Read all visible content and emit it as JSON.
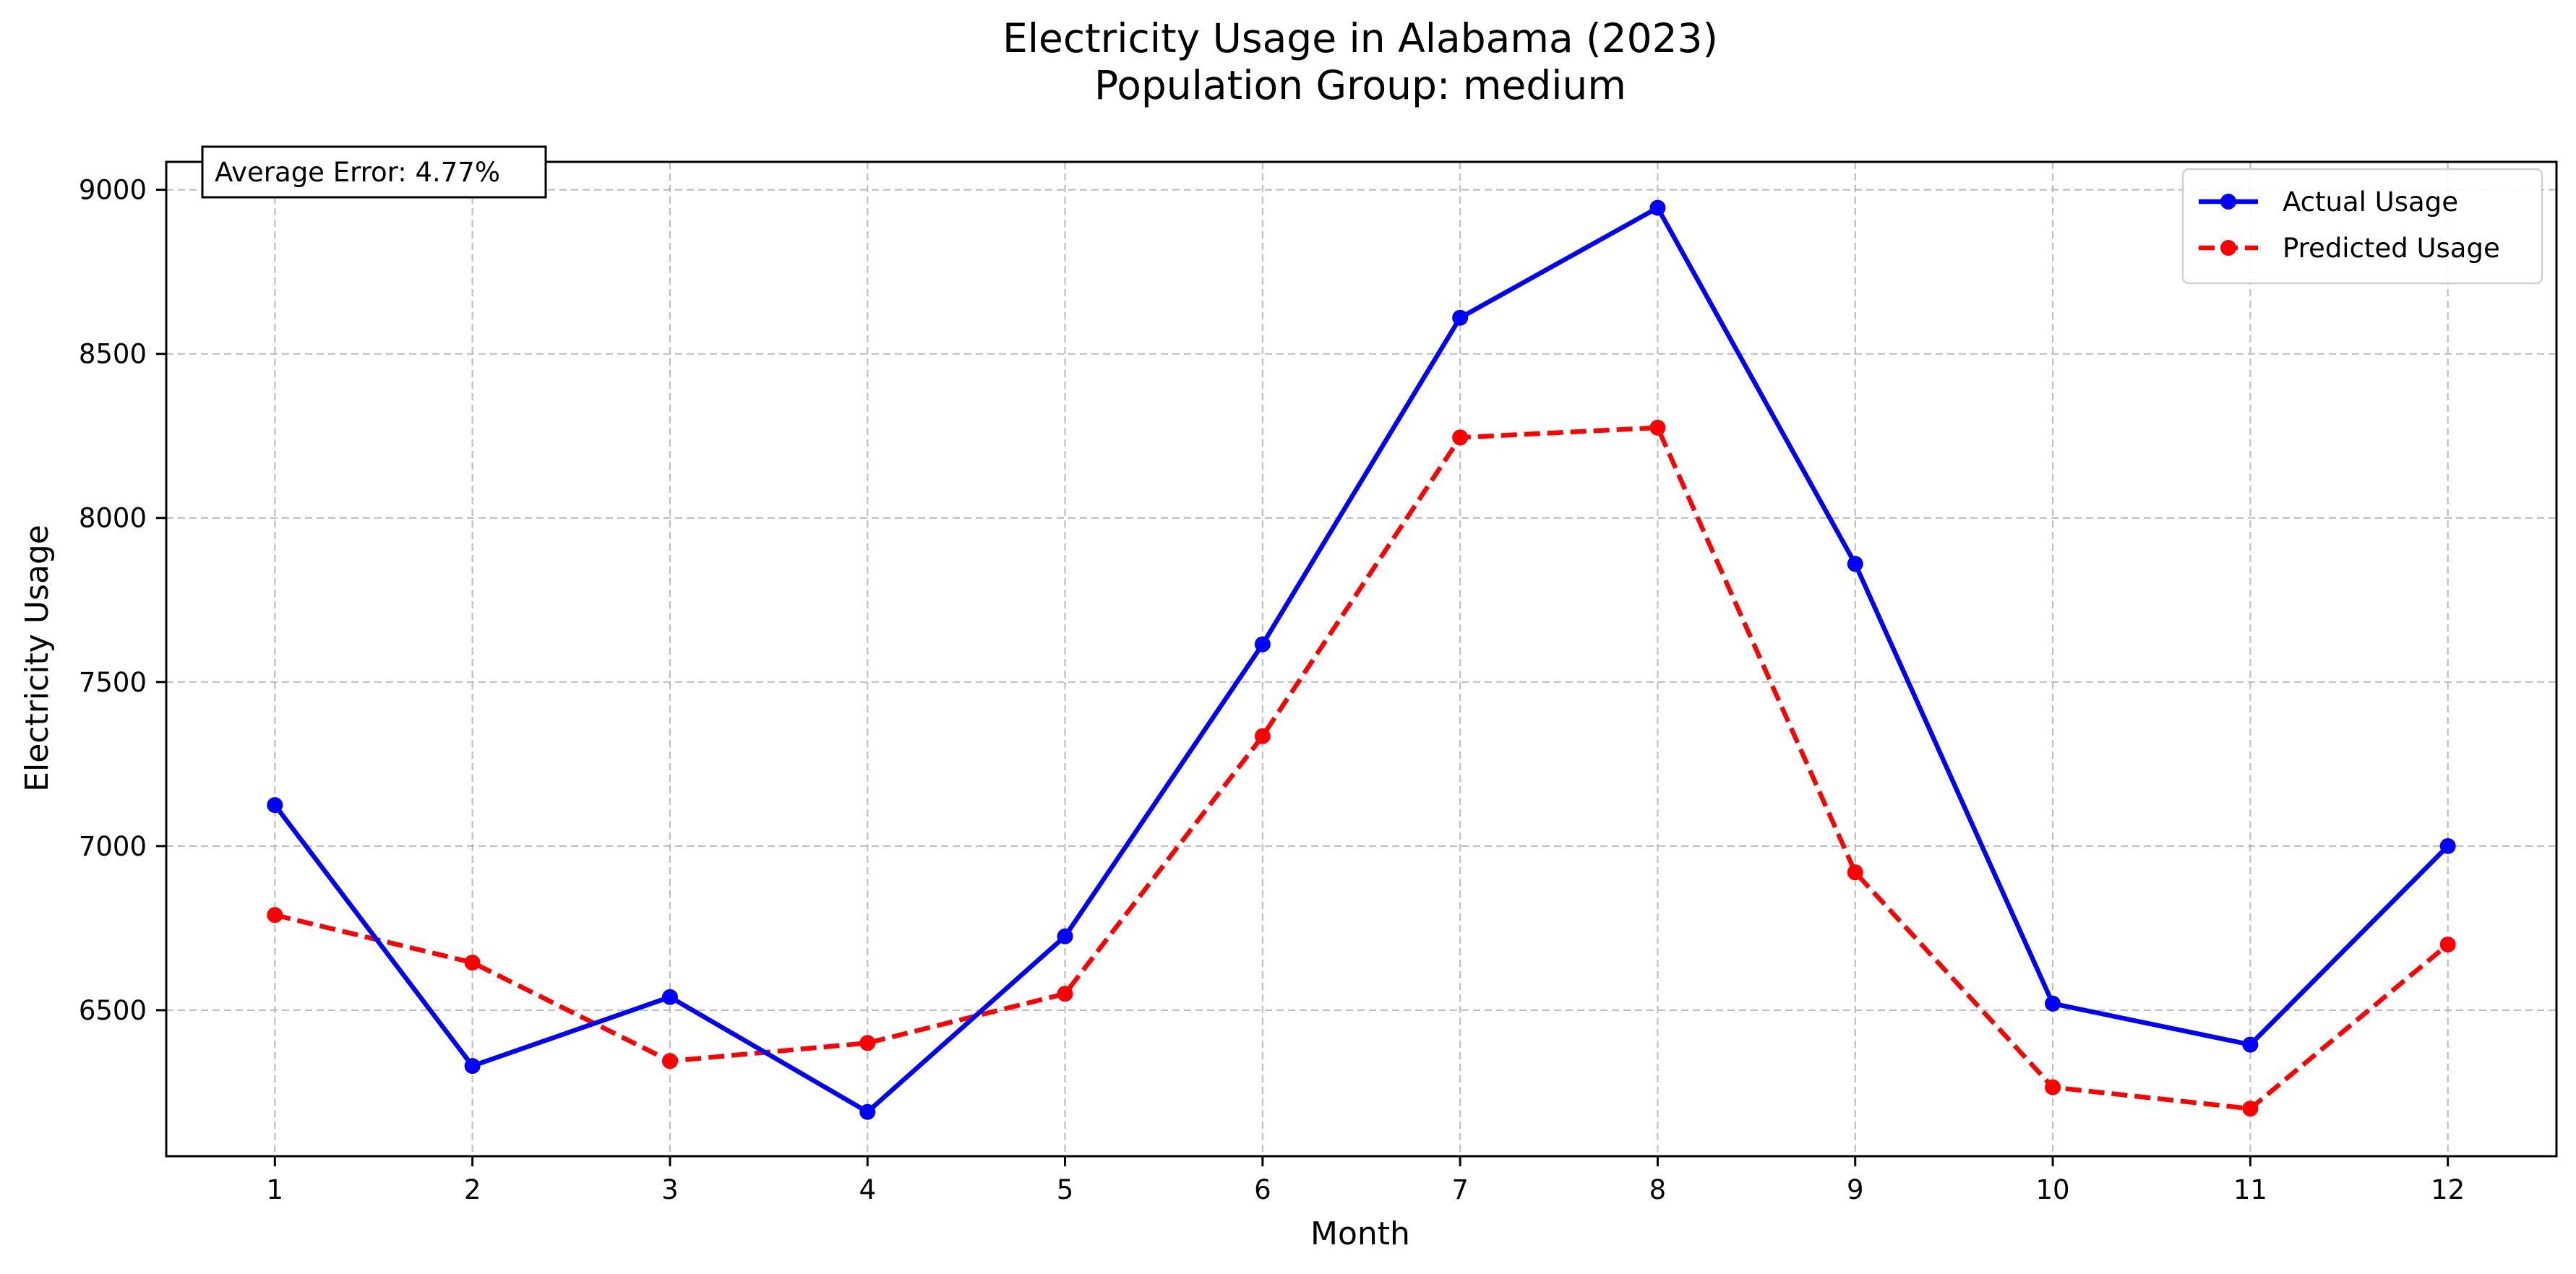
{
  "chart_data": {
    "type": "line",
    "title": "Electricity Usage in Alabama (2023)",
    "subtitle": "Population Group: medium",
    "xlabel": "Month",
    "ylabel": "Electricity Usage",
    "x": [
      1,
      2,
      3,
      4,
      5,
      6,
      7,
      8,
      9,
      10,
      11,
      12
    ],
    "xlim": [
      0.45,
      12.55
    ],
    "ylim": [
      6055,
      9085
    ],
    "yticks": [
      6500,
      7000,
      7500,
      8000,
      8500,
      9000
    ],
    "grid": true,
    "legend_position": "top-right",
    "annotation": "Average Error: 4.77%",
    "series": [
      {
        "name": "Actual Usage",
        "color": "#0000ff",
        "style": "solid",
        "values": [
          7125,
          6330,
          6540,
          6190,
          6725,
          7615,
          8610,
          8945,
          7860,
          6520,
          6395,
          7000
        ]
      },
      {
        "name": "Predicted Usage",
        "color": "#ff0000",
        "style": "dashed",
        "values": [
          6790,
          6645,
          6345,
          6400,
          6550,
          7335,
          8245,
          8275,
          6920,
          6265,
          6200,
          6700
        ]
      }
    ]
  }
}
